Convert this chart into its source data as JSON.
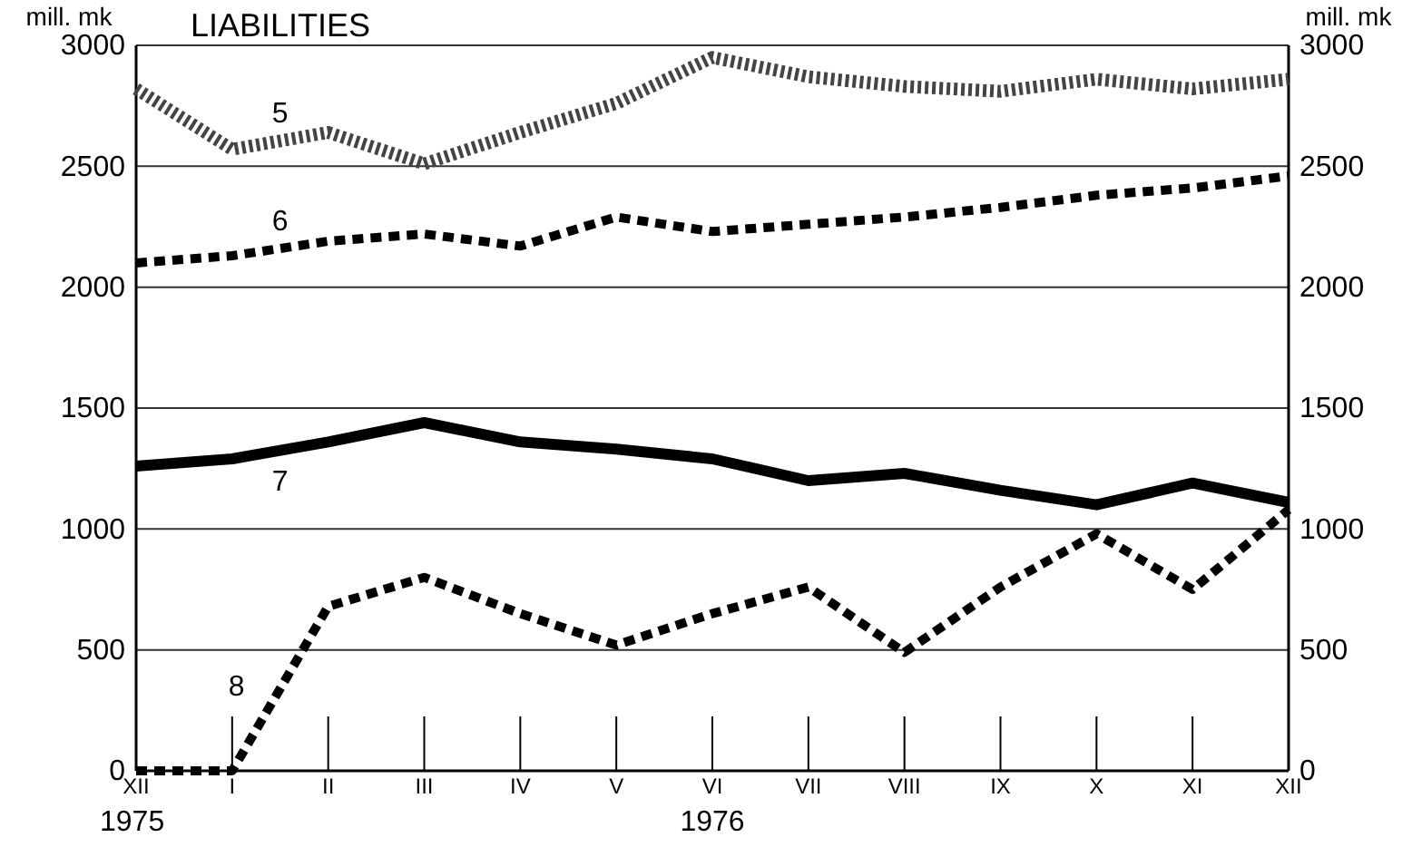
{
  "chart_data": {
    "type": "line",
    "title": "LIABILITIES",
    "ylabel": "mill. mk",
    "y2label": "mill. mk",
    "categories": [
      "XII",
      "I",
      "II",
      "III",
      "IV",
      "V",
      "VI",
      "VII",
      "VIII",
      "IX",
      "X",
      "XI",
      "XII"
    ],
    "annotations": [
      "1975",
      "1976"
    ],
    "series": [
      {
        "name": "5",
        "color": "#444444",
        "line_style": "dotted",
        "values": [
          2820,
          2570,
          2640,
          2510,
          2640,
          2760,
          2950,
          2870,
          2830,
          2810,
          2860,
          2820,
          2860
        ]
      },
      {
        "name": "6",
        "color": "#000000",
        "line_style": "dashed",
        "values": [
          2100,
          2130,
          2190,
          2220,
          2170,
          2290,
          2230,
          2260,
          2290,
          2330,
          2380,
          2410,
          2460
        ]
      },
      {
        "name": "7",
        "color": "#000000",
        "line_style": "solid",
        "values": [
          1260,
          1290,
          1360,
          1440,
          1360,
          1330,
          1290,
          1200,
          1230,
          1160,
          1100,
          1190,
          1110
        ]
      },
      {
        "name": "8",
        "color": "#000000",
        "line_style": "dashed",
        "values": [
          0,
          0,
          680,
          800,
          650,
          520,
          650,
          760,
          490,
          760,
          980,
          750,
          1080
        ]
      }
    ],
    "ylim": [
      0,
      3000
    ],
    "yticks": [
      0,
      500,
      1000,
      1500,
      2000,
      2500,
      3000
    ],
    "y2lim": [
      0,
      3000
    ],
    "y2ticks": [
      0,
      500,
      1000,
      1500,
      2000,
      2500,
      3000
    ],
    "grid": "y",
    "marker": "none"
  }
}
